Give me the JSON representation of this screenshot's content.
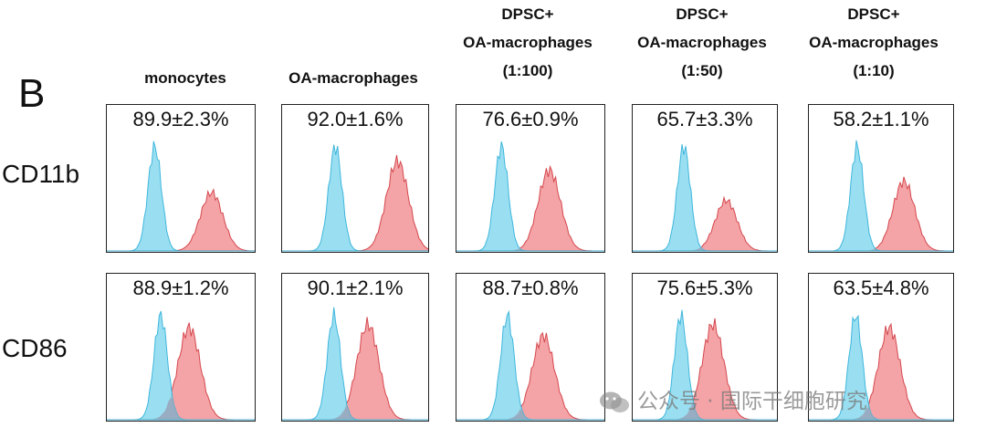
{
  "panel_letter": "B",
  "columns": [
    {
      "lines": [
        "monocytes"
      ]
    },
    {
      "lines": [
        "OA-macrophages"
      ]
    },
    {
      "lines": [
        "DPSC+",
        "OA-macrophages",
        "(1:100)"
      ]
    },
    {
      "lines": [
        "DPSC+",
        "OA-macrophages",
        "(1:50)"
      ]
    },
    {
      "lines": [
        "DPSC+",
        "OA-macrophages",
        "(1:10)"
      ]
    }
  ],
  "rows": [
    "CD11b",
    "CD86"
  ],
  "watermark": "公众号 · 国际干细胞研究",
  "colors": {
    "control": "#8fdcf0",
    "control_edge": "#3fb6dc",
    "stained": "#f4a3a6",
    "stained_edge": "#d4484e",
    "overlap": "#9a9fb5"
  },
  "chart_data": [
    {
      "type": "histogram",
      "row": "CD11b",
      "column": "monocytes",
      "label": "89.9±2.3%",
      "control_peak": 0.32,
      "stained_peak": 0.7,
      "stained_height": 0.52
    },
    {
      "type": "histogram",
      "row": "CD11b",
      "column": "OA-macrophages",
      "label": "92.0±1.6%",
      "control_peak": 0.36,
      "stained_peak": 0.78,
      "stained_height": 0.8
    },
    {
      "type": "histogram",
      "row": "CD11b",
      "column": "DPSC+ OA-macrophages (1:100)",
      "label": "76.6±0.9%",
      "control_peak": 0.3,
      "stained_peak": 0.62,
      "stained_height": 0.72
    },
    {
      "type": "histogram",
      "row": "CD11b",
      "column": "DPSC+ OA-macrophages (1:50)",
      "label": "65.7±3.3%",
      "control_peak": 0.35,
      "stained_peak": 0.64,
      "stained_height": 0.45
    },
    {
      "type": "histogram",
      "row": "CD11b",
      "column": "DPSC+ OA-macrophages (1:10)",
      "label": "58.2±1.1%",
      "control_peak": 0.33,
      "stained_peak": 0.65,
      "stained_height": 0.62
    },
    {
      "type": "histogram",
      "row": "CD86",
      "column": "monocytes",
      "label": "88.9±1.2%",
      "control_peak": 0.36,
      "stained_peak": 0.55,
      "stained_height": 0.82
    },
    {
      "type": "histogram",
      "row": "CD86",
      "column": "OA-macrophages",
      "label": "90.1±2.1%",
      "control_peak": 0.35,
      "stained_peak": 0.58,
      "stained_height": 0.85
    },
    {
      "type": "histogram",
      "row": "CD86",
      "column": "DPSC+ OA-macrophages (1:100)",
      "label": "88.7±0.8%",
      "control_peak": 0.34,
      "stained_peak": 0.58,
      "stained_height": 0.75
    },
    {
      "type": "histogram",
      "row": "CD86",
      "column": "DPSC+ OA-macrophages (1:50)",
      "label": "75.6±5.3%",
      "control_peak": 0.33,
      "stained_peak": 0.55,
      "stained_height": 0.85
    },
    {
      "type": "histogram",
      "row": "CD86",
      "column": "DPSC+ OA-macrophages (1:10)",
      "label": "63.5±4.8%",
      "control_peak": 0.32,
      "stained_peak": 0.55,
      "stained_height": 0.82
    }
  ]
}
